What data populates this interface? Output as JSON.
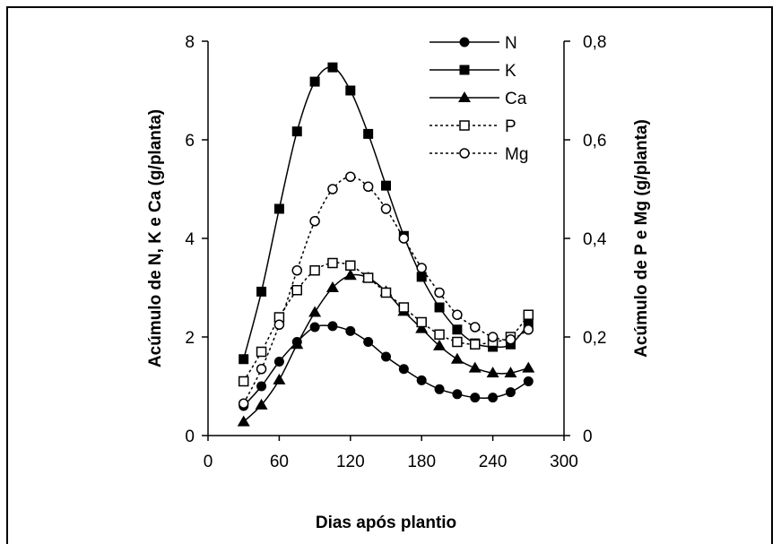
{
  "chart_data": {
    "type": "line",
    "title": "",
    "xlabel": "Dias após plantio",
    "ylabel_left": "Acúmulo de N, K e Ca (g/planta)",
    "ylabel_right": "Acúmulo de P e Mg (g/planta)",
    "x_ticks": [
      "0",
      "60",
      "120",
      "180",
      "240",
      "300"
    ],
    "y_left_ticks": [
      "0",
      "2",
      "4",
      "6",
      "8"
    ],
    "y_right_ticks": [
      "0",
      "0,2",
      "0,4",
      "0,6",
      "0,8"
    ],
    "xlim": [
      0,
      300
    ],
    "ylim_left": [
      0,
      8
    ],
    "ylim_right": [
      0,
      0.8
    ],
    "grid": false,
    "legend_position": "top-right",
    "x": [
      30,
      45,
      60,
      75,
      90,
      105,
      120,
      135,
      150,
      165,
      180,
      195,
      210,
      225,
      240,
      255,
      270
    ],
    "series": [
      {
        "name": "N",
        "axis": "left",
        "marker": "filled-circle",
        "line": "solid",
        "values": [
          0.6,
          1.0,
          1.5,
          1.9,
          2.2,
          2.22,
          2.12,
          1.9,
          1.6,
          1.35,
          1.12,
          0.94,
          0.84,
          0.77,
          0.77,
          0.88,
          1.1
        ]
      },
      {
        "name": "K",
        "axis": "left",
        "marker": "filled-square",
        "line": "solid",
        "values": [
          1.55,
          2.92,
          4.6,
          6.17,
          7.18,
          7.47,
          7.0,
          6.12,
          5.07,
          4.05,
          3.22,
          2.6,
          2.15,
          1.87,
          1.8,
          1.85,
          2.25
        ]
      },
      {
        "name": "Ca",
        "axis": "left",
        "marker": "filled-triangle",
        "line": "solid",
        "values": [
          0.28,
          0.62,
          1.13,
          1.85,
          2.5,
          3.0,
          3.25,
          3.2,
          2.92,
          2.52,
          2.17,
          1.82,
          1.55,
          1.37,
          1.27,
          1.27,
          1.37
        ]
      },
      {
        "name": "P",
        "axis": "right",
        "marker": "open-square",
        "line": "dotted",
        "values": [
          0.11,
          0.17,
          0.24,
          0.295,
          0.335,
          0.35,
          0.345,
          0.32,
          0.29,
          0.26,
          0.23,
          0.205,
          0.19,
          0.185,
          0.19,
          0.2,
          0.245
        ]
      },
      {
        "name": "Mg",
        "axis": "right",
        "marker": "open-circle",
        "line": "dotted",
        "values": [
          0.065,
          0.135,
          0.225,
          0.335,
          0.435,
          0.5,
          0.525,
          0.505,
          0.46,
          0.4,
          0.34,
          0.29,
          0.245,
          0.22,
          0.2,
          0.195,
          0.215
        ]
      }
    ]
  },
  "colors": {
    "ink": "#000000",
    "background": "#ffffff"
  }
}
